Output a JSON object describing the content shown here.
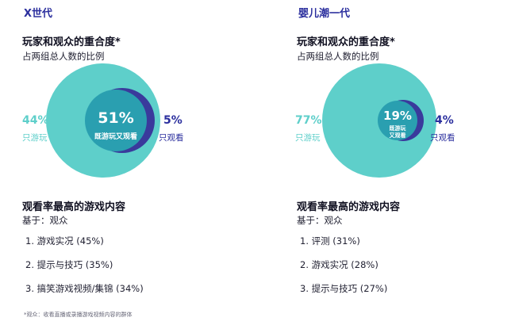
{
  "colors": {
    "accent": "#2b2f9e",
    "teal": "#5ecfca",
    "teal_dark": "#2a9fb0",
    "navy": "#3a3a9c"
  },
  "panels": [
    {
      "title": "X世代",
      "overlap_title": "玩家和观众的重合度*",
      "overlap_subtitle": "占两组总人数的比例",
      "venn": {
        "players_only_pct": "44%",
        "players_only_label": "只游玩",
        "both_pct": "51%",
        "both_label": "既游玩又观看",
        "viewers_only_pct": "5%",
        "viewers_only_label": "只观看"
      },
      "content_title": "观看率最高的游戏内容",
      "content_basis": "基于：观众",
      "rankings": [
        "1. 游戏实况 (45%)",
        "2. 提示与技巧 (35%)",
        "3. 搞笑游戏视频/集锦 (34%)"
      ]
    },
    {
      "title": "婴儿潮一代",
      "overlap_title": "玩家和观众的重合度*",
      "overlap_subtitle": "占两组总人数的比例",
      "venn": {
        "players_only_pct": "77%",
        "players_only_label": "只游玩",
        "both_pct": "19%",
        "both_label_line1": "既游玩",
        "both_label_line2": "又观看",
        "viewers_only_pct": "4%",
        "viewers_only_label": "只观看"
      },
      "content_title": "观看率最高的游戏内容",
      "content_basis": "基于：观众",
      "rankings": [
        "1. 评测 (31%)",
        "2. 游戏实况 (28%)",
        "3. 提示与技巧 (27%)"
      ]
    }
  ],
  "footnote": "*观众：收看直播或录播游戏视频内容的群体"
}
